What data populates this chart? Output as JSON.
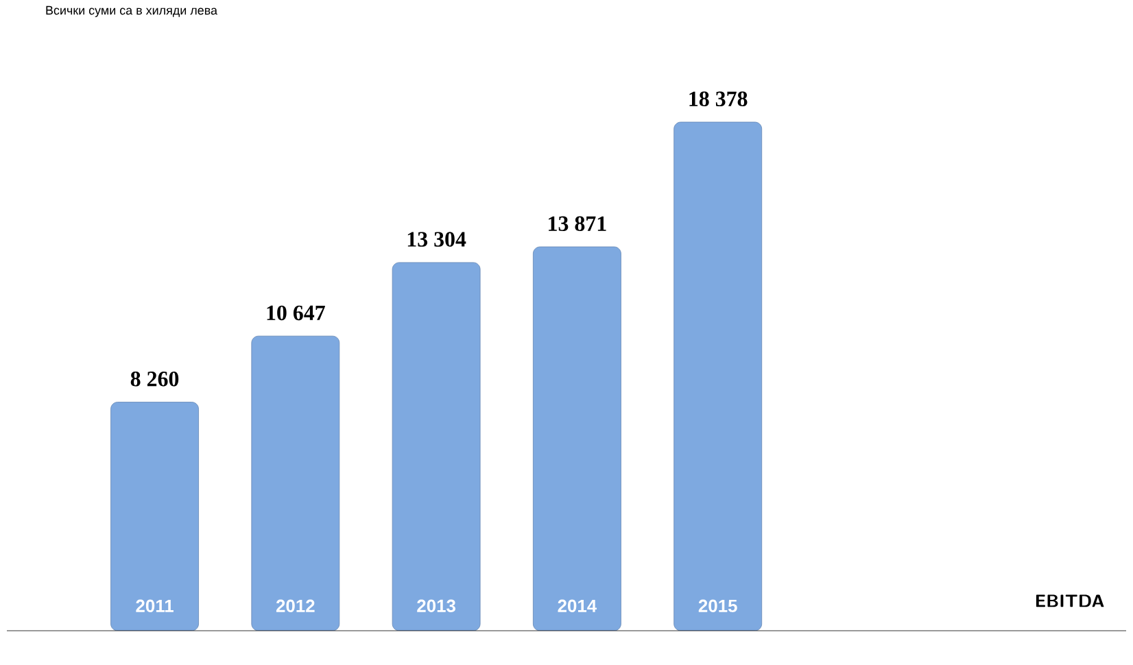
{
  "chart_data": {
    "type": "bar",
    "title": "Всички суми са в хиляди лева",
    "categories": [
      "2011",
      "2012",
      "2013",
      "2014",
      "2015"
    ],
    "values": [
      8260,
      10647,
      13304,
      13871,
      18378
    ],
    "value_labels": [
      "8 260",
      "10 647",
      "13 304",
      "13 871",
      "18 378"
    ],
    "color": "#7ea9e0",
    "annotations": [
      "EBITDA"
    ]
  }
}
